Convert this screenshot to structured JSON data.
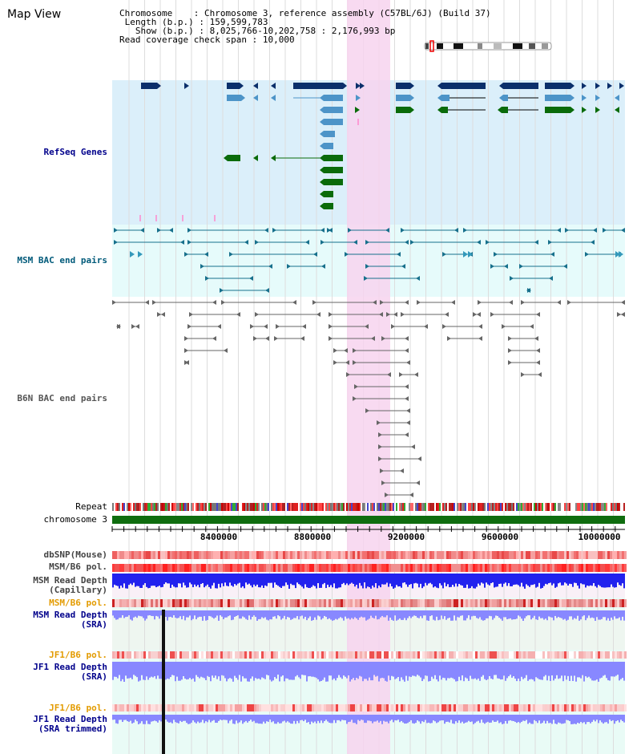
{
  "map_title": "Map View",
  "info": {
    "chromosome_key": "Chromosome",
    "chromosome_val": "Chromosome 3, reference assembly (C57BL/6J) (Build 37)",
    "length_key": "Length (b.p.)",
    "length_val": "159,599,783",
    "show_key": "Show (b.p.)",
    "show_val": "8,025,766-10,202,758 : 2,176,993 bp",
    "read_key": "Read coverage check span",
    "read_val": "10,000"
  },
  "tracks": {
    "refseq": "RefSeq Genes",
    "msm_bac": "MSM BAC end pairs",
    "b6n_bac": "B6N BAC end pairs",
    "repeat": "Repeat",
    "chromosome": "chromosome 3",
    "dbsnp": "dbSNP(Mouse)",
    "msm_b6_pol": "MSM/B6 pol.",
    "msm_read_cap_1": "MSM Read Depth",
    "msm_read_cap_2": "(Capillary)",
    "msm_b6_pol_2": "MSM/B6 pol.",
    "msm_read_sra_1": "MSM Read Depth",
    "msm_read_sra_2": "(SRA)",
    "jf1_b6_pol": "JF1/B6 pol.",
    "jf1_read_sra_1": "JF1 Read Depth",
    "jf1_read_sra_2": "(SRA)",
    "jf1_b6_pol_2": "JF1/B6 pol.",
    "jf1_read_trim_1": "JF1 Read Depth",
    "jf1_read_trim_2": "(SRA trimmed)"
  },
  "axis_ticks": [
    "8400000",
    "8800000",
    "9200000",
    "9600000",
    "10000000"
  ],
  "colors": {
    "refseq_bg": "#dbeffa",
    "msm_bg": "#e6fbfb",
    "highlight": "#f7d3ee",
    "gene_navy": "#0b2f6b",
    "gene_blue": "#4d94c8",
    "gene_green": "#0a6b0a",
    "msm_line": "#17708c",
    "b6n_line": "#666666",
    "chrom_green": "#0f6d0f",
    "label_blue": "#00008b",
    "label_teal": "#005a7a",
    "label_gray": "#444444",
    "label_orange": "#e39b00",
    "depth_blue": "#2222ee",
    "depth_lightblue": "#8888ff"
  }
}
